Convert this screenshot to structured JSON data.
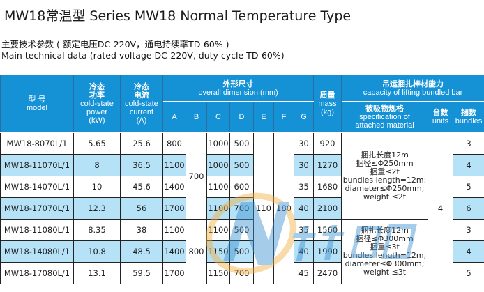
{
  "title": "MW18常温型  Series MW18  Normal Temperature Type",
  "subtitle_cn": "主要技术参数 ( 额定电压DC-220V，通电持续率TD-60% )",
  "subtitle_en": "Main technical data (rated voltage DC-220V, duty cycle TD-60%)",
  "headers": {
    "model": [
      "型  号",
      "model"
    ],
    "power": [
      "冷态",
      "功率",
      "cold-state",
      "power",
      "(kW)"
    ],
    "current": [
      "冷态",
      "电流",
      "cold-state",
      "current",
      "(A)"
    ],
    "dimension": [
      "外形尺寸",
      "overall dimension (mm)"
    ],
    "dims": [
      "A",
      "B",
      "C",
      "D",
      "E",
      "F",
      "G"
    ],
    "mass": [
      "质量",
      "mass",
      "(kg)"
    ],
    "capacity": [
      "吊运捆扎棒材能力",
      "capacity of lifting bundled bar"
    ],
    "spec": [
      "被吸物规格",
      "specification of",
      "attached material"
    ],
    "units": [
      "台数",
      "units"
    ],
    "bundles": [
      "捆数",
      "bundles"
    ]
  },
  "rows": [
    {
      "model": "MW18-8070L/1",
      "power": "5.65",
      "current": "25.6",
      "A": "800",
      "C": "1000",
      "D": "500",
      "G": "30",
      "mass": "920",
      "bundles": "3"
    },
    {
      "model": "MW18-11070L/1",
      "power": "8",
      "current": "36.5",
      "A": "1100",
      "C": "1000",
      "D": "500",
      "G": "30",
      "mass": "1270",
      "bundles": "4"
    },
    {
      "model": "MW18-14070L/1",
      "power": "10",
      "current": "45.6",
      "A": "1400",
      "C": "1100",
      "D": "600",
      "G": "35",
      "mass": "1680",
      "bundles": "5"
    },
    {
      "model": "MW18-17070L/1",
      "power": "12.3",
      "current": "56",
      "A": "1700",
      "C": "1100",
      "D": "700",
      "G": "40",
      "mass": "2100",
      "bundles": "6"
    },
    {
      "model": "MW18-11080L/1",
      "power": "8.35",
      "current": "38",
      "A": "1100",
      "C": "1100",
      "D": "500",
      "G": "35",
      "mass": "1560",
      "bundles": "3"
    },
    {
      "model": "MW18-14080L/1",
      "power": "10.8",
      "current": "48.5",
      "A": "1400",
      "C": "1150",
      "D": "500",
      "G": "40",
      "mass": "1990",
      "bundles": "4"
    },
    {
      "model": "MW18-17080L/1",
      "power": "13.1",
      "current": "59.5",
      "A": "1700",
      "C": "1150",
      "D": "700",
      "G": "45",
      "mass": "2470",
      "bundles": "5"
    }
  ],
  "merged": {
    "B1": "700",
    "B2": "800",
    "E": "110",
    "F": "180",
    "units": "4"
  },
  "spec1": [
    "捆扎长度12m",
    "捆径≤Φ250mm",
    "捆重≤2t",
    "bundles length=12m;",
    "diameter≤Φ250mm;",
    "weight ≤2t"
  ],
  "spec2": [
    "捆扎长度12m",
    "捆径≤Φ300mm",
    "捆重≤3t",
    "bundles length=12m;",
    "diameter≤Φ300mm;",
    "weight ≤3t"
  ],
  "watermark": "中南电磁 ZHONGNANDIANCI"
}
